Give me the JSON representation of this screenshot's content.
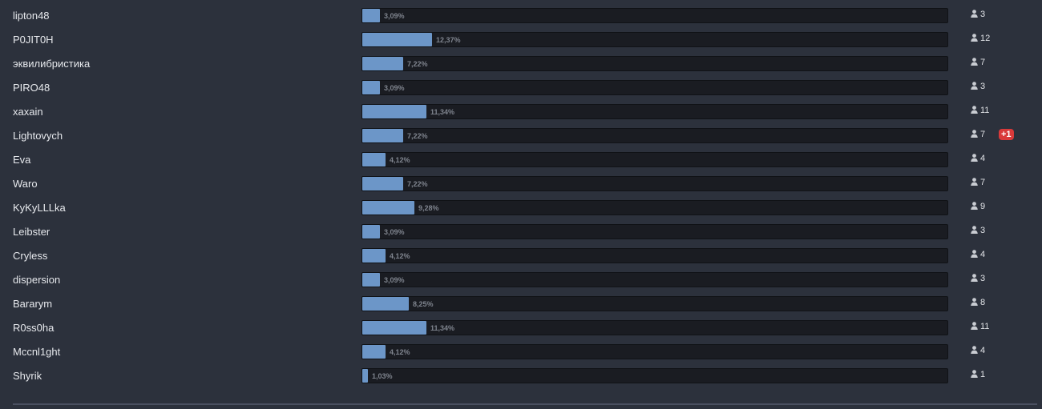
{
  "poll": {
    "options": [
      {
        "label": "lipton48",
        "percent_text": "3,09%",
        "percent": 3.09,
        "votes": "3"
      },
      {
        "label": "P0JIT0H",
        "percent_text": "12,37%",
        "percent": 12.37,
        "votes": "12"
      },
      {
        "label": "эквилибристика",
        "percent_text": "7,22%",
        "percent": 7.22,
        "votes": "7"
      },
      {
        "label": "PIRO48",
        "percent_text": "3,09%",
        "percent": 3.09,
        "votes": "3"
      },
      {
        "label": "xaxain",
        "percent_text": "11,34%",
        "percent": 11.34,
        "votes": "11"
      },
      {
        "label": "Lightovych",
        "percent_text": "7,22%",
        "percent": 7.22,
        "votes": "7",
        "badge": "+1"
      },
      {
        "label": "Eva",
        "percent_text": "4,12%",
        "percent": 4.12,
        "votes": "4"
      },
      {
        "label": "Waro",
        "percent_text": "7,22%",
        "percent": 7.22,
        "votes": "7"
      },
      {
        "label": "KyKyLLLka",
        "percent_text": "9,28%",
        "percent": 9.28,
        "votes": "9"
      },
      {
        "label": "Leibster",
        "percent_text": "3,09%",
        "percent": 3.09,
        "votes": "3"
      },
      {
        "label": "Cryless",
        "percent_text": "4,12%",
        "percent": 4.12,
        "votes": "4"
      },
      {
        "label": "dispersion",
        "percent_text": "3,09%",
        "percent": 3.09,
        "votes": "3"
      },
      {
        "label": "Bararym",
        "percent_text": "8,25%",
        "percent": 8.25,
        "votes": "8"
      },
      {
        "label": "R0ss0ha",
        "percent_text": "11,34%",
        "percent": 11.34,
        "votes": "11"
      },
      {
        "label": "Mccnl1ght",
        "percent_text": "4,12%",
        "percent": 4.12,
        "votes": "4"
      },
      {
        "label": "Shyrik",
        "percent_text": "1,03%",
        "percent": 1.03,
        "votes": "1"
      }
    ],
    "voter_icon": "person-icon",
    "colors": {
      "background": "#2c313c",
      "bar_fill": "#6c96c8",
      "bar_track": "#1a1c22",
      "badge": "#d93a3a"
    }
  }
}
